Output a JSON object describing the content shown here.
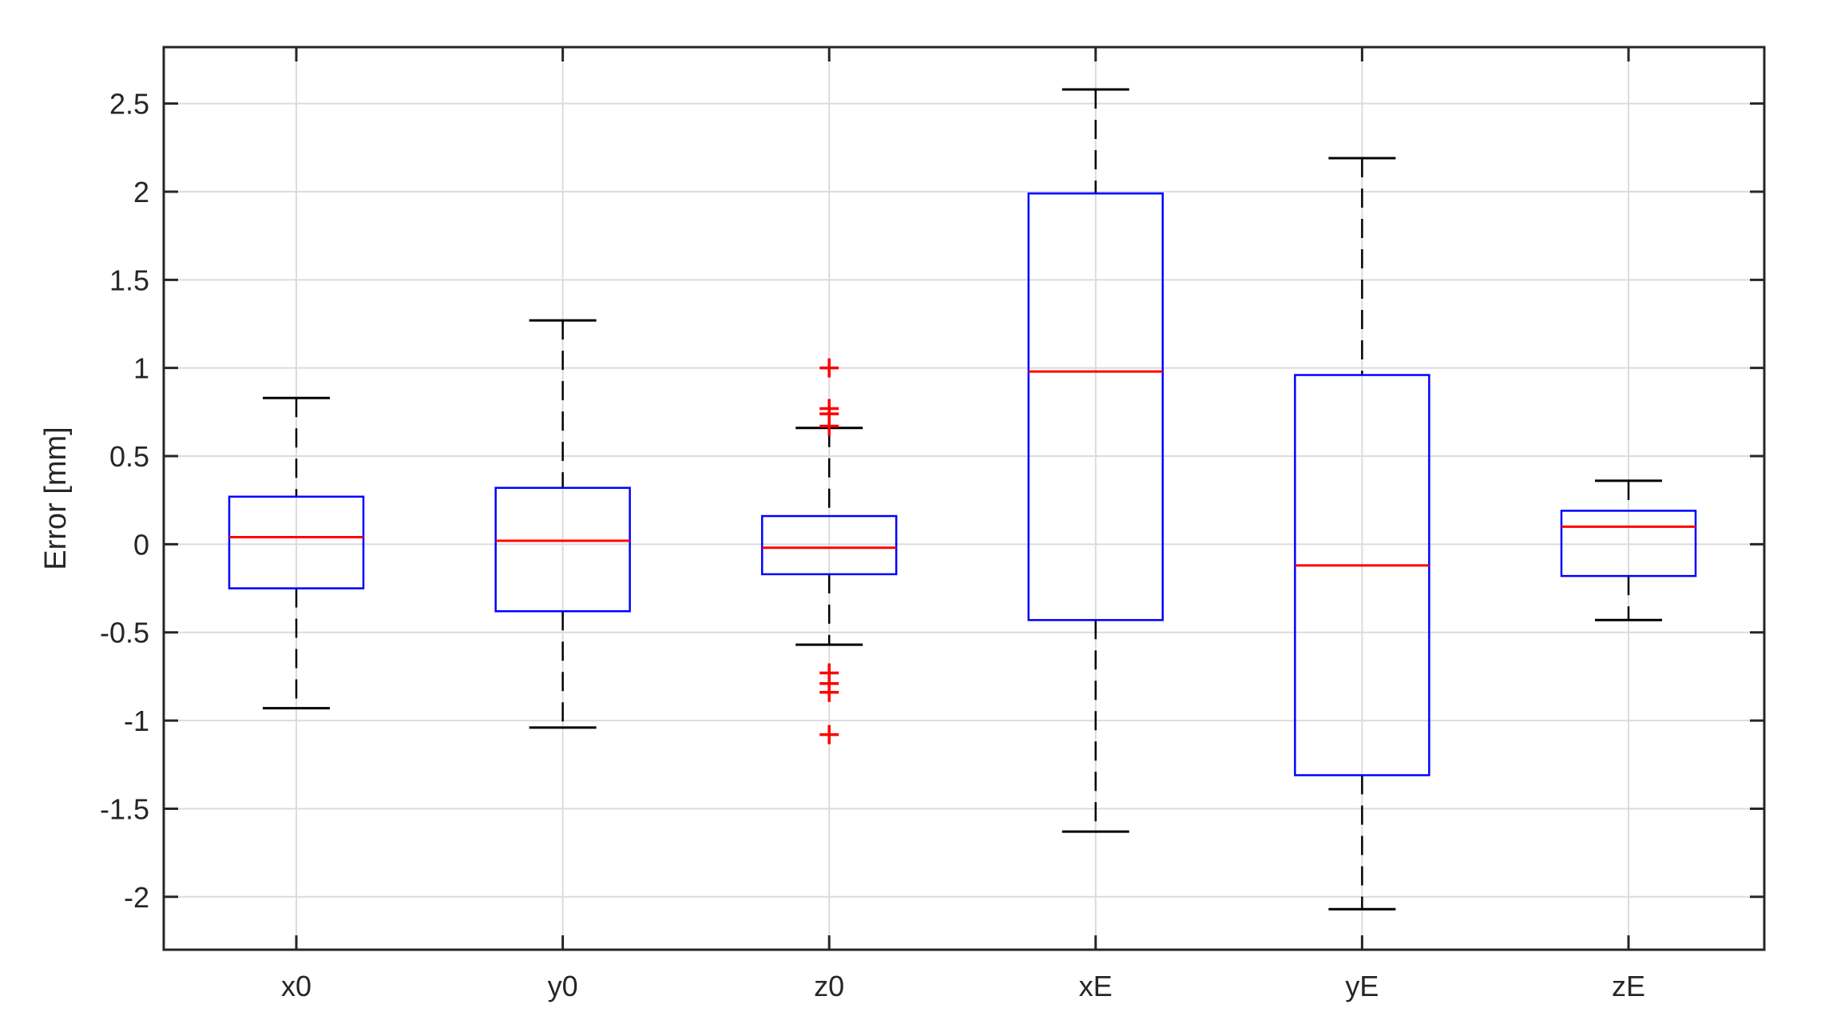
{
  "chart_data": {
    "type": "box",
    "title": "",
    "xlabel": "",
    "ylabel": "Error [mm]",
    "ylim": [
      -2.3,
      2.82
    ],
    "yticks": [
      2.5,
      2,
      1.5,
      1,
      0.5,
      0,
      -0.5,
      -1,
      -1.5,
      -2
    ],
    "ytick_labels": [
      "2.5",
      "2",
      "1.5",
      "1",
      "0.5",
      "0",
      "-0.5",
      "-1",
      "-1.5",
      "-2"
    ],
    "grid": true,
    "categories": [
      "x0",
      "y0",
      "z0",
      "xE",
      "yE",
      "zE"
    ],
    "boxes": [
      {
        "category": "x0",
        "whisker_low": -0.93,
        "q1": -0.25,
        "median": 0.04,
        "q3": 0.27,
        "whisker_high": 0.83,
        "outliers": []
      },
      {
        "category": "y0",
        "whisker_low": -1.04,
        "q1": -0.38,
        "median": 0.02,
        "q3": 0.32,
        "whisker_high": 1.27,
        "outliers": []
      },
      {
        "category": "z0",
        "whisker_low": -0.57,
        "q1": -0.17,
        "median": -0.02,
        "q3": 0.16,
        "whisker_high": 0.66,
        "outliers": [
          1.0,
          0.77,
          0.74,
          0.67,
          -0.73,
          -0.79,
          -0.84,
          -1.08
        ]
      },
      {
        "category": "xE",
        "whisker_low": -1.63,
        "q1": -0.43,
        "median": 0.98,
        "q3": 1.99,
        "whisker_high": 2.58,
        "outliers": []
      },
      {
        "category": "yE",
        "whisker_low": -2.07,
        "q1": -1.31,
        "median": -0.12,
        "q3": 0.96,
        "whisker_high": 2.19,
        "outliers": []
      },
      {
        "category": "zE",
        "whisker_low": -0.43,
        "q1": -0.18,
        "median": 0.1,
        "q3": 0.19,
        "whisker_high": 0.36,
        "outliers": []
      }
    ],
    "colors": {
      "box": "#0000ff",
      "median": "#ff0000",
      "whisker": "#000000",
      "outlier": "#ff0000",
      "grid": "#dcdcdc",
      "axis": "#262626"
    }
  }
}
